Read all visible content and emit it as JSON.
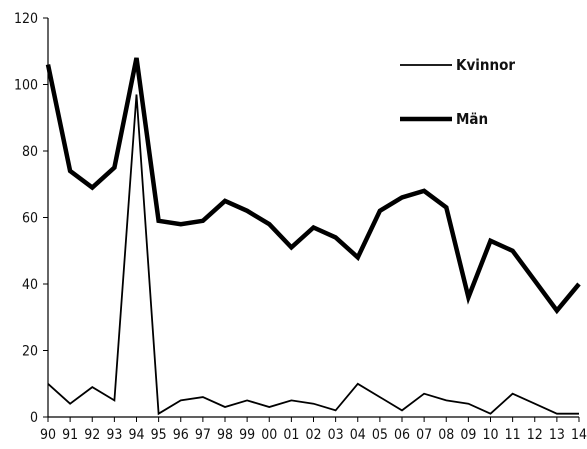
{
  "chart_data": {
    "type": "line",
    "categories": [
      "90",
      "91",
      "92",
      "93",
      "94",
      "95",
      "96",
      "97",
      "98",
      "99",
      "00",
      "01",
      "02",
      "03",
      "04",
      "05",
      "06",
      "07",
      "08",
      "09",
      "10",
      "11",
      "12",
      "13",
      "14"
    ],
    "series": [
      {
        "name": "Kvinnor",
        "values": [
          10,
          4,
          9,
          5,
          97,
          1,
          5,
          6,
          3,
          5,
          3,
          5,
          4,
          2,
          10,
          6,
          2,
          7,
          5,
          4,
          1,
          7,
          4,
          1,
          1
        ]
      },
      {
        "name": "Män",
        "values": [
          106,
          74,
          69,
          75,
          108,
          59,
          58,
          59,
          65,
          62,
          58,
          51,
          57,
          54,
          48,
          62,
          66,
          68,
          63,
          36,
          53,
          50,
          41,
          32,
          40
        ]
      }
    ],
    "ylim": [
      0,
      120
    ],
    "yticks": [
      0,
      20,
      40,
      60,
      80,
      100,
      120
    ],
    "grid": false,
    "legend_position": "top-right",
    "title": "",
    "xlabel": "",
    "ylabel": "",
    "colors": {
      "line": "#000000",
      "axis": "#000000"
    }
  }
}
